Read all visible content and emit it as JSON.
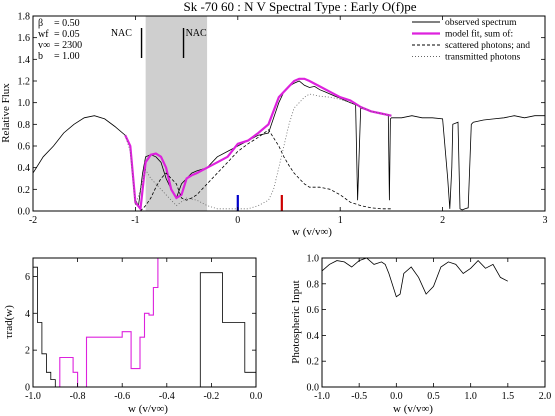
{
  "chart_data": [
    {
      "type": "line",
      "title": "Sk -70 60 : N V      Spectral Type : Early O(f)pe",
      "xlabel": "w (v/v∞)",
      "ylabel": "Relative Flux",
      "xlim": [
        -2,
        3
      ],
      "ylim": [
        0,
        1.8
      ],
      "xticks": [
        -2,
        -1,
        0,
        1,
        2,
        3
      ],
      "yticks": [
        0,
        0.2,
        0.4,
        0.6,
        0.8,
        1.0,
        1.2,
        1.4,
        1.6,
        1.8
      ],
      "legend_position": "top-right",
      "params": [
        {
          "label": "β",
          "value": "= 0.50"
        },
        {
          "label": "wf",
          "value": "= 0.05"
        },
        {
          "label": "v∞",
          "value": "= 2300"
        },
        {
          "label": "b",
          "value": "= 1.00"
        }
      ],
      "annotations": [
        "NAC",
        "NAC"
      ],
      "shaded_band": [
        -0.9,
        -0.3
      ],
      "markers": [
        {
          "x": 0.0,
          "color": "#0000cc"
        },
        {
          "x": 0.43,
          "color": "#cc0000"
        }
      ],
      "series": [
        {
          "name": "observed spectrum",
          "color": "#000000",
          "x": [
            -2.0,
            -1.9,
            -1.8,
            -1.7,
            -1.6,
            -1.5,
            -1.4,
            -1.3,
            -1.2,
            -1.1,
            -1.05,
            -1.0,
            -0.97,
            -0.93,
            -0.9,
            -0.85,
            -0.8,
            -0.75,
            -0.7,
            -0.65,
            -0.6,
            -0.55,
            -0.5,
            -0.45,
            -0.4,
            -0.3,
            -0.2,
            -0.1,
            0.0,
            0.1,
            0.2,
            0.3,
            0.4,
            0.45,
            0.5,
            0.55,
            0.6,
            0.65,
            0.7,
            0.75,
            0.8,
            0.85,
            0.9,
            0.95,
            1.0,
            1.1,
            1.15,
            1.17,
            1.2,
            1.3,
            1.4,
            1.47,
            1.48,
            1.49,
            1.5,
            1.6,
            1.7,
            1.8,
            1.9,
            2.0,
            2.05,
            2.07,
            2.09,
            2.1,
            2.15,
            2.17,
            2.19,
            2.22,
            2.25,
            2.28,
            2.3,
            2.4,
            2.5,
            2.6,
            2.7,
            2.8,
            2.9,
            3.0
          ],
          "y": [
            0.35,
            0.5,
            0.6,
            0.72,
            0.8,
            0.86,
            0.88,
            0.85,
            0.78,
            0.7,
            0.6,
            0.1,
            0.05,
            0.35,
            0.5,
            0.52,
            0.5,
            0.45,
            0.3,
            0.2,
            0.12,
            0.25,
            0.3,
            0.35,
            0.37,
            0.4,
            0.5,
            0.55,
            0.6,
            0.65,
            0.7,
            0.72,
            1.0,
            1.1,
            1.15,
            1.18,
            1.2,
            1.16,
            1.14,
            1.15,
            1.12,
            1.1,
            1.08,
            1.06,
            1.04,
            1.0,
            0.98,
            0.1,
            0.95,
            0.92,
            0.9,
            0.88,
            0.1,
            0.85,
            0.86,
            0.86,
            0.88,
            0.86,
            0.86,
            0.85,
            0.3,
            0.02,
            0.4,
            0.8,
            0.82,
            0.02,
            0.01,
            0.02,
            0.03,
            0.8,
            0.82,
            0.84,
            0.85,
            0.86,
            0.88,
            0.86,
            0.88,
            0.88
          ]
        },
        {
          "name": "model fit, sum of:",
          "color": "#dd22dd",
          "x": [
            -1.1,
            -1.05,
            -1.0,
            -0.95,
            -0.9,
            -0.85,
            -0.8,
            -0.75,
            -0.7,
            -0.65,
            -0.6,
            -0.55,
            -0.5,
            -0.45,
            -0.4,
            -0.3,
            -0.2,
            -0.1,
            0.0,
            0.1,
            0.2,
            0.3,
            0.4,
            0.45,
            0.5,
            0.55,
            0.6,
            0.65,
            0.7,
            0.8,
            0.9,
            1.0,
            1.1,
            1.2,
            1.3,
            1.4,
            1.5
          ],
          "y": [
            0.7,
            0.6,
            0.08,
            0.02,
            0.45,
            0.52,
            0.53,
            0.5,
            0.4,
            0.2,
            0.12,
            0.15,
            0.3,
            0.33,
            0.35,
            0.4,
            0.45,
            0.5,
            0.62,
            0.65,
            0.72,
            0.8,
            1.05,
            1.1,
            1.15,
            1.2,
            1.22,
            1.22,
            1.2,
            1.15,
            1.1,
            1.05,
            1.02,
            0.96,
            0.92,
            0.9,
            0.88
          ]
        },
        {
          "name": "scattered photons; and",
          "color": "#000000",
          "dash": "dashed",
          "x": [
            -1.0,
            -0.95,
            -0.9,
            -0.85,
            -0.8,
            -0.75,
            -0.7,
            -0.65,
            -0.6,
            -0.55,
            -0.5,
            -0.45,
            -0.4,
            -0.3,
            -0.2,
            -0.1,
            0.0,
            0.1,
            0.2,
            0.3,
            0.4,
            0.45,
            0.5,
            0.55,
            0.6,
            0.65,
            0.7,
            0.75,
            0.8,
            0.9,
            1.0,
            1.1,
            1.2,
            1.3,
            1.4,
            1.5
          ],
          "y": [
            0.0,
            0.0,
            0.05,
            0.12,
            0.22,
            0.3,
            0.35,
            0.3,
            0.25,
            0.12,
            0.1,
            0.12,
            0.15,
            0.25,
            0.35,
            0.45,
            0.55,
            0.62,
            0.68,
            0.75,
            0.6,
            0.5,
            0.42,
            0.35,
            0.3,
            0.25,
            0.22,
            0.22,
            0.22,
            0.2,
            0.15,
            0.08,
            0.05,
            0.03,
            0.02,
            0.02
          ]
        },
        {
          "name": "transmitted photons",
          "color": "#666666",
          "dash": "dotted",
          "x": [
            -1.1,
            -1.05,
            -1.0,
            -0.95,
            -0.9,
            -0.85,
            -0.8,
            -0.7,
            -0.6,
            -0.5,
            -0.4,
            -0.3,
            -0.2,
            -0.1,
            0.0,
            0.1,
            0.2,
            0.3,
            0.35,
            0.4,
            0.45,
            0.5,
            0.55,
            0.6,
            0.65,
            0.7,
            0.8,
            0.9,
            1.0,
            1.1,
            1.2,
            1.3,
            1.4,
            1.5
          ],
          "y": [
            0.7,
            0.55,
            0.05,
            0.2,
            0.38,
            0.3,
            0.25,
            0.15,
            0.05,
            0.12,
            0.1,
            0.05,
            0.02,
            0.02,
            0.02,
            0.02,
            0.05,
            0.1,
            0.2,
            0.4,
            0.6,
            0.8,
            0.95,
            1.0,
            1.05,
            1.08,
            1.06,
            1.05,
            1.03,
            1.0,
            0.96,
            0.92,
            0.9,
            0.88
          ]
        }
      ]
    },
    {
      "type": "line",
      "title": "",
      "xlabel": "w (v/v∞)",
      "ylabel": "τrad(w)",
      "xlim": [
        -1.0,
        0.0
      ],
      "ylim": [
        0,
        7
      ],
      "xticks": [
        -1.0,
        -0.8,
        -0.6,
        -0.4,
        -0.2,
        0.0
      ],
      "yticks": [
        0,
        2,
        4,
        6
      ],
      "series": [
        {
          "name": "",
          "color": "#000000",
          "step": true,
          "x": [
            -1.0,
            -0.98,
            -0.96,
            -0.94,
            -0.92,
            -0.9,
            -0.25,
            -0.15,
            -0.05,
            0.0
          ],
          "y": [
            6.5,
            3.5,
            1.8,
            0.8,
            0.4,
            0.0,
            6.2,
            3.5,
            0.8,
            0.0
          ]
        },
        {
          "name": "",
          "color": "#dd22dd",
          "step": true,
          "x": [
            -0.9,
            -0.88,
            -0.82,
            -0.8,
            -0.76,
            -0.6,
            -0.56,
            -0.52,
            -0.5,
            -0.48,
            -0.46,
            -0.44,
            -0.42
          ],
          "y": [
            0.0,
            1.6,
            0.8,
            0.0,
            2.7,
            3.0,
            1.0,
            2.7,
            4.0,
            3.9,
            5.4,
            7.0,
            7.0
          ]
        }
      ]
    },
    {
      "type": "line",
      "title": "",
      "xlabel": "w (v/v∞)",
      "ylabel": "Photospheric Input",
      "xlim": [
        -1.0,
        2.0
      ],
      "ylim": [
        0,
        1.0
      ],
      "xticks": [
        -1.0,
        -0.5,
        0.0,
        0.5,
        1.0,
        1.5,
        2.0
      ],
      "yticks": [
        0,
        0.2,
        0.4,
        0.6,
        0.8,
        1.0
      ],
      "series": [
        {
          "name": "",
          "color": "#000000",
          "x": [
            -1.0,
            -0.9,
            -0.8,
            -0.7,
            -0.6,
            -0.5,
            -0.4,
            -0.3,
            -0.2,
            -0.15,
            -0.1,
            0.0,
            0.05,
            0.1,
            0.2,
            0.3,
            0.4,
            0.5,
            0.6,
            0.7,
            0.8,
            0.9,
            1.0,
            1.1,
            1.2,
            1.3,
            1.4,
            1.5
          ],
          "y": [
            0.9,
            0.95,
            0.98,
            0.97,
            0.93,
            0.98,
            1.0,
            0.95,
            0.97,
            0.95,
            0.88,
            0.7,
            0.72,
            0.88,
            0.93,
            0.85,
            0.72,
            0.78,
            0.93,
            0.97,
            0.95,
            0.88,
            0.92,
            0.98,
            0.92,
            0.95,
            0.85,
            0.82
          ]
        }
      ]
    }
  ]
}
